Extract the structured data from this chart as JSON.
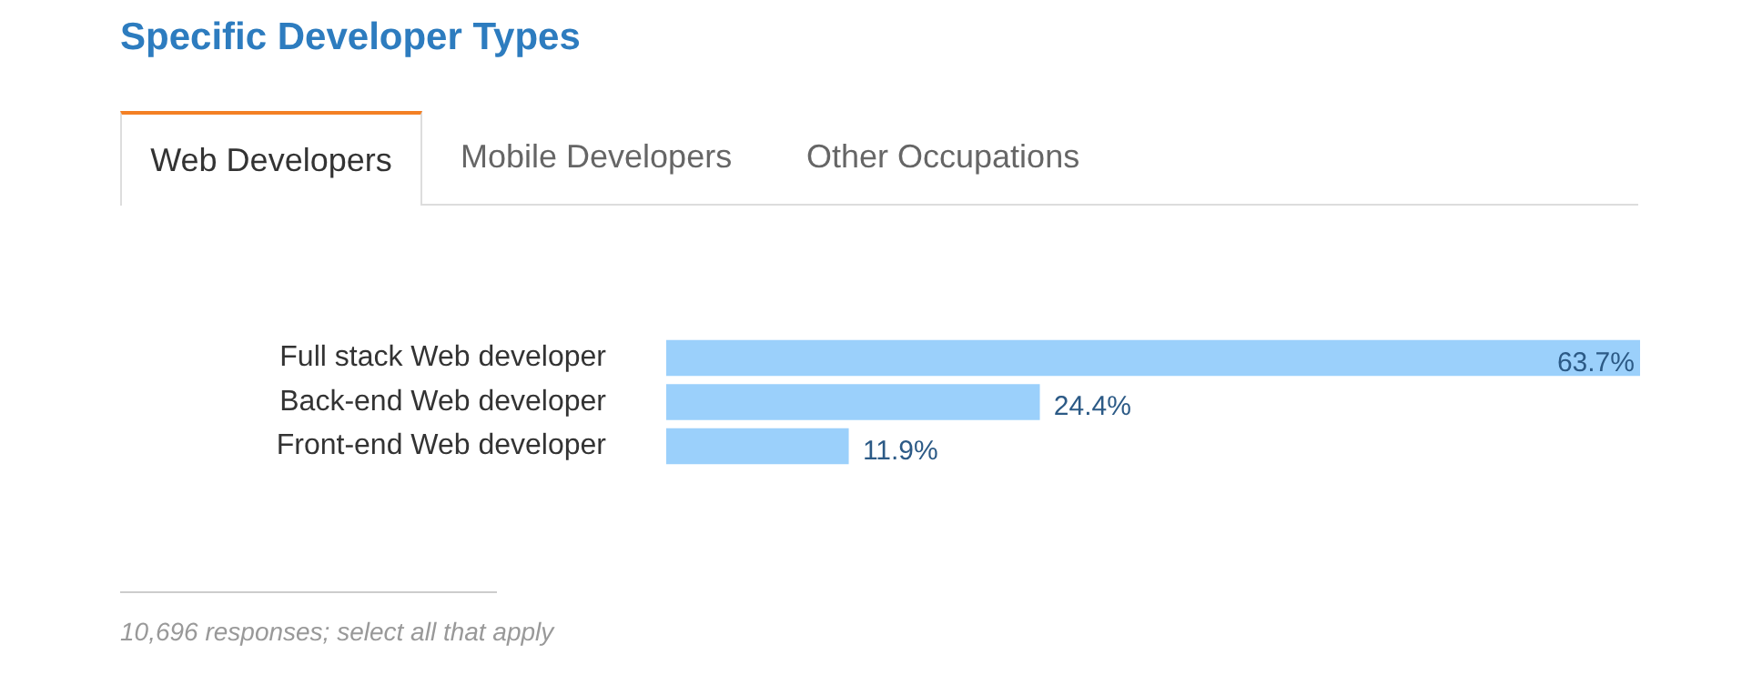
{
  "chart_data": {
    "type": "bar",
    "orientation": "horizontal",
    "title": "Specific Developer Types",
    "categories": [
      "Full stack Web developer",
      "Back-end Web developer",
      "Front-end Web developer"
    ],
    "values": [
      63.7,
      24.4,
      11.9
    ],
    "value_labels": [
      "63.7%",
      "24.4%",
      "11.9%"
    ],
    "color": "#9bd0fb",
    "legend": false,
    "annotations": [
      "Web Developers",
      "Mobile Developers",
      "Other Occupations",
      "10,696 responses; select all that apply"
    ]
  }
}
